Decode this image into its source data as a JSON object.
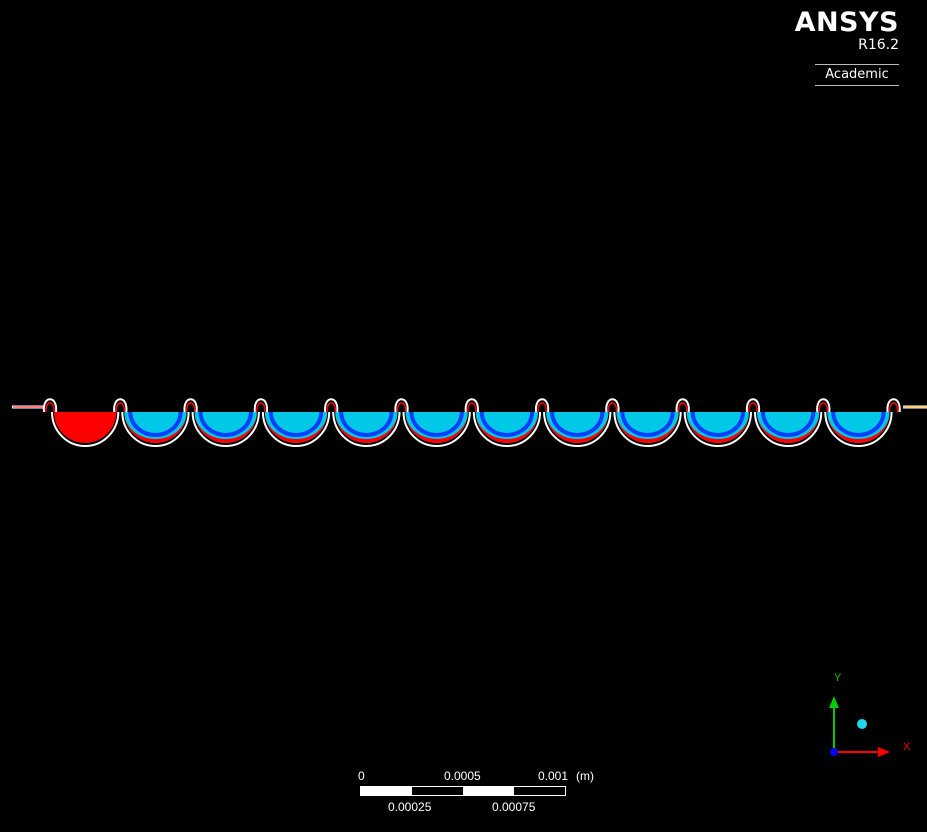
{
  "branding": {
    "name": "ANSYS",
    "version": "R16.2",
    "license": "Academic"
  },
  "scale_bar": {
    "top_labels": [
      "0",
      "0.0005",
      "0.001"
    ],
    "unit": "(m)",
    "bottom_labels": [
      "0.00025",
      "0.00075"
    ]
  },
  "axis_triad": {
    "x_label": "X",
    "y_label": "Y"
  },
  "colors": {
    "background": "#000000",
    "outline": "#ffffff",
    "contour_high": "#ff0000",
    "contour_mid": "#00c8e6",
    "contour_low": "#0028ff",
    "x_axis": "#ff0000",
    "y_axis": "#00cc00",
    "z_axis": "#0000ff"
  }
}
